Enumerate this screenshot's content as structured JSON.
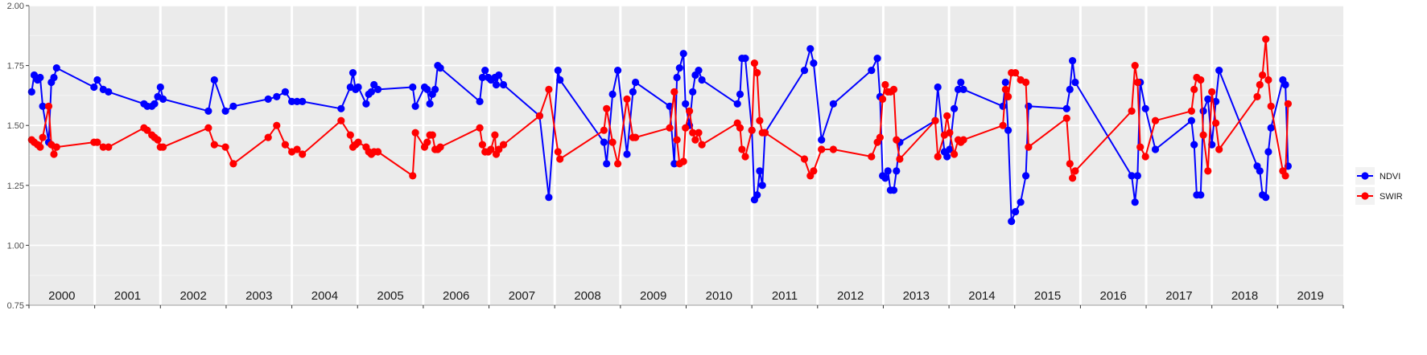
{
  "chart_data": {
    "type": "line",
    "title": "",
    "xlabel": "",
    "ylabel": "",
    "ylim": [
      0.75,
      2.0
    ],
    "y_ticks": [
      "0.75",
      "1.00",
      "1.25",
      "1.50",
      "1.75",
      "2.00"
    ],
    "years": [
      "2000",
      "2001",
      "2002",
      "2003",
      "2004",
      "2005",
      "2006",
      "2007",
      "2008",
      "2009",
      "2010",
      "2011",
      "2012",
      "2013",
      "2014",
      "2015",
      "2016",
      "2017",
      "2018",
      "2019"
    ],
    "grid": true,
    "legend_position": "right",
    "series": [
      {
        "name": "NDVI",
        "color": "#0000ff",
        "points": [
          [
            2000.04,
            1.64
          ],
          [
            2000.08,
            1.71
          ],
          [
            2000.13,
            1.69
          ],
          [
            2000.17,
            1.7
          ],
          [
            2000.21,
            1.58
          ],
          [
            2000.3,
            1.43
          ],
          [
            2000.34,
            1.68
          ],
          [
            2000.38,
            1.7
          ],
          [
            2000.42,
            1.74
          ],
          [
            2000.99,
            1.66
          ],
          [
            2001.04,
            1.69
          ],
          [
            2001.13,
            1.65
          ],
          [
            2001.21,
            1.64
          ],
          [
            2001.75,
            1.59
          ],
          [
            2001.8,
            1.58
          ],
          [
            2001.87,
            1.58
          ],
          [
            2001.91,
            1.59
          ],
          [
            2001.96,
            1.62
          ],
          [
            2002.0,
            1.66
          ],
          [
            2002.04,
            1.61
          ],
          [
            2002.73,
            1.56
          ],
          [
            2002.82,
            1.69
          ],
          [
            2002.99,
            1.56
          ],
          [
            2003.11,
            1.58
          ],
          [
            2003.64,
            1.61
          ],
          [
            2003.77,
            1.62
          ],
          [
            2003.9,
            1.64
          ],
          [
            2004.0,
            1.6
          ],
          [
            2004.08,
            1.6
          ],
          [
            2004.16,
            1.6
          ],
          [
            2004.75,
            1.57
          ],
          [
            2004.89,
            1.66
          ],
          [
            2004.93,
            1.72
          ],
          [
            2004.97,
            1.65
          ],
          [
            2005.01,
            1.66
          ],
          [
            2005.13,
            1.59
          ],
          [
            2005.17,
            1.63
          ],
          [
            2005.21,
            1.64
          ],
          [
            2005.25,
            1.67
          ],
          [
            2005.31,
            1.65
          ],
          [
            2005.84,
            1.66
          ],
          [
            2005.88,
            1.58
          ],
          [
            2006.02,
            1.66
          ],
          [
            2006.06,
            1.65
          ],
          [
            2006.1,
            1.59
          ],
          [
            2006.14,
            1.63
          ],
          [
            2006.18,
            1.65
          ],
          [
            2006.22,
            1.75
          ],
          [
            2006.26,
            1.74
          ],
          [
            2006.86,
            1.6
          ],
          [
            2006.9,
            1.7
          ],
          [
            2006.94,
            1.73
          ],
          [
            2006.99,
            1.7
          ],
          [
            2007.03,
            1.69
          ],
          [
            2007.09,
            1.7
          ],
          [
            2007.11,
            1.67
          ],
          [
            2007.15,
            1.71
          ],
          [
            2007.22,
            1.67
          ],
          [
            2007.77,
            1.54
          ],
          [
            2007.91,
            1.2
          ],
          [
            2008.05,
            1.73
          ],
          [
            2008.08,
            1.69
          ],
          [
            2008.75,
            1.43
          ],
          [
            2008.79,
            1.34
          ],
          [
            2008.88,
            1.63
          ],
          [
            2008.96,
            1.73
          ],
          [
            2009.1,
            1.38
          ],
          [
            2009.19,
            1.64
          ],
          [
            2009.23,
            1.68
          ],
          [
            2009.75,
            1.58
          ],
          [
            2009.82,
            1.34
          ],
          [
            2009.86,
            1.7
          ],
          [
            2009.9,
            1.74
          ],
          [
            2009.96,
            1.8
          ],
          [
            2009.99,
            1.59
          ],
          [
            2010.05,
            1.5
          ],
          [
            2010.1,
            1.64
          ],
          [
            2010.14,
            1.71
          ],
          [
            2010.19,
            1.73
          ],
          [
            2010.24,
            1.69
          ],
          [
            2010.78,
            1.59
          ],
          [
            2010.82,
            1.63
          ],
          [
            2010.85,
            1.78
          ],
          [
            2010.9,
            1.78
          ],
          [
            2011.0,
            1.48
          ],
          [
            2011.04,
            1.19
          ],
          [
            2011.08,
            1.21
          ],
          [
            2011.12,
            1.31
          ],
          [
            2011.16,
            1.25
          ],
          [
            2011.2,
            1.47
          ],
          [
            2011.8,
            1.73
          ],
          [
            2011.89,
            1.82
          ],
          [
            2011.94,
            1.76
          ],
          [
            2012.06,
            1.44
          ],
          [
            2012.24,
            1.59
          ],
          [
            2012.82,
            1.73
          ],
          [
            2012.91,
            1.78
          ],
          [
            2012.95,
            1.62
          ],
          [
            2012.99,
            1.29
          ],
          [
            2013.03,
            1.28
          ],
          [
            2013.07,
            1.31
          ],
          [
            2013.11,
            1.23
          ],
          [
            2013.16,
            1.23
          ],
          [
            2013.2,
            1.31
          ],
          [
            2013.25,
            1.43
          ],
          [
            2013.79,
            1.52
          ],
          [
            2013.83,
            1.66
          ],
          [
            2013.93,
            1.39
          ],
          [
            2013.97,
            1.37
          ],
          [
            2014.01,
            1.4
          ],
          [
            2014.08,
            1.57
          ],
          [
            2014.14,
            1.65
          ],
          [
            2014.18,
            1.68
          ],
          [
            2014.22,
            1.65
          ],
          [
            2014.82,
            1.58
          ],
          [
            2014.86,
            1.68
          ],
          [
            2014.9,
            1.48
          ],
          [
            2014.95,
            1.1
          ],
          [
            2015.01,
            1.14
          ],
          [
            2015.09,
            1.18
          ],
          [
            2015.17,
            1.29
          ],
          [
            2015.21,
            1.58
          ],
          [
            2015.79,
            1.57
          ],
          [
            2015.84,
            1.65
          ],
          [
            2015.88,
            1.77
          ],
          [
            2015.92,
            1.68
          ],
          [
            2016.78,
            1.29
          ],
          [
            2016.83,
            1.18
          ],
          [
            2016.87,
            1.29
          ],
          [
            2016.91,
            1.68
          ],
          [
            2016.99,
            1.57
          ],
          [
            2017.14,
            1.4
          ],
          [
            2017.69,
            1.52
          ],
          [
            2017.73,
            1.42
          ],
          [
            2017.77,
            1.21
          ],
          [
            2017.83,
            1.21
          ],
          [
            2017.87,
            1.56
          ],
          [
            2017.94,
            1.61
          ],
          [
            2018.0,
            1.42
          ],
          [
            2018.06,
            1.6
          ],
          [
            2018.11,
            1.73
          ],
          [
            2018.69,
            1.33
          ],
          [
            2018.73,
            1.31
          ],
          [
            2018.77,
            1.21
          ],
          [
            2018.82,
            1.2
          ],
          [
            2018.86,
            1.39
          ],
          [
            2018.9,
            1.49
          ],
          [
            2019.08,
            1.69
          ],
          [
            2019.12,
            1.67
          ],
          [
            2019.16,
            1.33
          ]
        ]
      },
      {
        "name": "SWIR",
        "color": "#ff0000",
        "points": [
          [
            2000.04,
            1.44
          ],
          [
            2000.08,
            1.43
          ],
          [
            2000.13,
            1.42
          ],
          [
            2000.17,
            1.41
          ],
          [
            2000.21,
            1.45
          ],
          [
            2000.3,
            1.58
          ],
          [
            2000.34,
            1.42
          ],
          [
            2000.38,
            1.38
          ],
          [
            2000.42,
            1.41
          ],
          [
            2000.99,
            1.43
          ],
          [
            2001.04,
            1.43
          ],
          [
            2001.13,
            1.41
          ],
          [
            2001.21,
            1.41
          ],
          [
            2001.75,
            1.49
          ],
          [
            2001.8,
            1.48
          ],
          [
            2001.87,
            1.46
          ],
          [
            2001.91,
            1.45
          ],
          [
            2001.96,
            1.44
          ],
          [
            2002.0,
            1.41
          ],
          [
            2002.04,
            1.41
          ],
          [
            2002.73,
            1.49
          ],
          [
            2002.82,
            1.42
          ],
          [
            2002.99,
            1.41
          ],
          [
            2003.11,
            1.34
          ],
          [
            2003.64,
            1.45
          ],
          [
            2003.77,
            1.5
          ],
          [
            2003.9,
            1.42
          ],
          [
            2004.0,
            1.39
          ],
          [
            2004.08,
            1.4
          ],
          [
            2004.16,
            1.38
          ],
          [
            2004.75,
            1.52
          ],
          [
            2004.89,
            1.46
          ],
          [
            2004.93,
            1.41
          ],
          [
            2004.97,
            1.42
          ],
          [
            2005.01,
            1.43
          ],
          [
            2005.13,
            1.41
          ],
          [
            2005.17,
            1.39
          ],
          [
            2005.21,
            1.38
          ],
          [
            2005.25,
            1.39
          ],
          [
            2005.31,
            1.39
          ],
          [
            2005.84,
            1.29
          ],
          [
            2005.88,
            1.47
          ],
          [
            2006.02,
            1.41
          ],
          [
            2006.06,
            1.43
          ],
          [
            2006.1,
            1.46
          ],
          [
            2006.14,
            1.46
          ],
          [
            2006.18,
            1.4
          ],
          [
            2006.22,
            1.4
          ],
          [
            2006.26,
            1.41
          ],
          [
            2006.86,
            1.49
          ],
          [
            2006.9,
            1.42
          ],
          [
            2006.94,
            1.39
          ],
          [
            2006.99,
            1.39
          ],
          [
            2007.03,
            1.4
          ],
          [
            2007.09,
            1.46
          ],
          [
            2007.11,
            1.38
          ],
          [
            2007.15,
            1.4
          ],
          [
            2007.22,
            1.42
          ],
          [
            2007.77,
            1.54
          ],
          [
            2007.91,
            1.65
          ],
          [
            2008.05,
            1.39
          ],
          [
            2008.08,
            1.36
          ],
          [
            2008.75,
            1.48
          ],
          [
            2008.79,
            1.57
          ],
          [
            2008.88,
            1.43
          ],
          [
            2008.96,
            1.34
          ],
          [
            2009.1,
            1.61
          ],
          [
            2009.19,
            1.45
          ],
          [
            2009.23,
            1.45
          ],
          [
            2009.75,
            1.49
          ],
          [
            2009.82,
            1.64
          ],
          [
            2009.86,
            1.44
          ],
          [
            2009.9,
            1.34
          ],
          [
            2009.96,
            1.35
          ],
          [
            2009.99,
            1.49
          ],
          [
            2010.05,
            1.56
          ],
          [
            2010.1,
            1.47
          ],
          [
            2010.14,
            1.44
          ],
          [
            2010.19,
            1.47
          ],
          [
            2010.24,
            1.42
          ],
          [
            2010.78,
            1.51
          ],
          [
            2010.82,
            1.49
          ],
          [
            2010.85,
            1.4
          ],
          [
            2010.9,
            1.37
          ],
          [
            2011.0,
            1.48
          ],
          [
            2011.04,
            1.76
          ],
          [
            2011.08,
            1.72
          ],
          [
            2011.12,
            1.52
          ],
          [
            2011.16,
            1.47
          ],
          [
            2011.2,
            1.47
          ],
          [
            2011.8,
            1.36
          ],
          [
            2011.89,
            1.29
          ],
          [
            2011.94,
            1.31
          ],
          [
            2012.06,
            1.4
          ],
          [
            2012.24,
            1.4
          ],
          [
            2012.82,
            1.37
          ],
          [
            2012.91,
            1.43
          ],
          [
            2012.95,
            1.45
          ],
          [
            2012.99,
            1.61
          ],
          [
            2013.03,
            1.67
          ],
          [
            2013.07,
            1.64
          ],
          [
            2013.11,
            1.64
          ],
          [
            2013.16,
            1.65
          ],
          [
            2013.2,
            1.44
          ],
          [
            2013.25,
            1.36
          ],
          [
            2013.79,
            1.52
          ],
          [
            2013.83,
            1.37
          ],
          [
            2013.93,
            1.46
          ],
          [
            2013.97,
            1.54
          ],
          [
            2014.01,
            1.47
          ],
          [
            2014.08,
            1.38
          ],
          [
            2014.14,
            1.44
          ],
          [
            2014.18,
            1.43
          ],
          [
            2014.22,
            1.44
          ],
          [
            2014.82,
            1.5
          ],
          [
            2014.86,
            1.65
          ],
          [
            2014.9,
            1.62
          ],
          [
            2014.95,
            1.72
          ],
          [
            2015.01,
            1.72
          ],
          [
            2015.09,
            1.69
          ],
          [
            2015.17,
            1.68
          ],
          [
            2015.21,
            1.41
          ],
          [
            2015.79,
            1.53
          ],
          [
            2015.84,
            1.34
          ],
          [
            2015.88,
            1.28
          ],
          [
            2015.92,
            1.31
          ],
          [
            2016.78,
            1.56
          ],
          [
            2016.83,
            1.75
          ],
          [
            2016.87,
            1.68
          ],
          [
            2016.91,
            1.41
          ],
          [
            2016.99,
            1.37
          ],
          [
            2017.14,
            1.52
          ],
          [
            2017.69,
            1.56
          ],
          [
            2017.73,
            1.65
          ],
          [
            2017.77,
            1.7
          ],
          [
            2017.83,
            1.69
          ],
          [
            2017.87,
            1.46
          ],
          [
            2017.94,
            1.31
          ],
          [
            2018.0,
            1.64
          ],
          [
            2018.06,
            1.51
          ],
          [
            2018.11,
            1.4
          ],
          [
            2018.69,
            1.62
          ],
          [
            2018.73,
            1.67
          ],
          [
            2018.77,
            1.71
          ],
          [
            2018.82,
            1.86
          ],
          [
            2018.86,
            1.69
          ],
          [
            2018.9,
            1.58
          ],
          [
            2019.08,
            1.31
          ],
          [
            2019.12,
            1.29
          ],
          [
            2019.16,
            1.59
          ]
        ]
      }
    ]
  }
}
